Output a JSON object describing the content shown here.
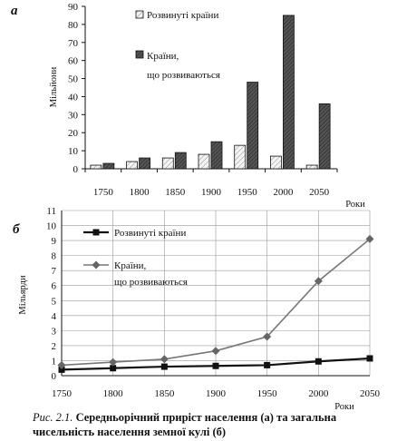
{
  "chart_data": [
    {
      "type": "bar",
      "panel_label": "а",
      "categories": [
        "1750",
        "1800",
        "1850",
        "1900",
        "1950",
        "2000",
        "2050"
      ],
      "series": [
        {
          "name": "Розвинуті країни",
          "values": [
            2,
            4,
            6,
            8,
            13,
            7,
            2
          ]
        },
        {
          "name": "Країни, що розвиваються",
          "values": [
            3,
            6,
            9,
            15,
            48,
            85,
            36
          ]
        }
      ],
      "xlabel": "Роки",
      "ylabel": "Мільйони",
      "ylim": [
        0,
        90
      ],
      "yticks": [
        "0",
        "10",
        "20",
        "30",
        "40",
        "50",
        "60",
        "70",
        "80",
        "90"
      ],
      "grid": false,
      "legend": "top-left"
    },
    {
      "type": "line",
      "panel_label": "б",
      "x": [
        "1750",
        "1800",
        "1850",
        "1900",
        "1950",
        "2000",
        "2050"
      ],
      "series": [
        {
          "name": "Розвинуті країни",
          "values": [
            0.4,
            0.5,
            0.6,
            0.65,
            0.7,
            0.95,
            1.15
          ]
        },
        {
          "name": "Країни, що розвиваються",
          "values": [
            0.7,
            0.9,
            1.1,
            1.65,
            2.6,
            6.3,
            9.1
          ]
        }
      ],
      "xlabel": "Роки",
      "ylabel": "Мільярди",
      "ylim": [
        0,
        11
      ],
      "yticks": [
        "0",
        "1",
        "2",
        "3",
        "4",
        "5",
        "6",
        "7",
        "8",
        "9",
        "10",
        "11"
      ],
      "grid": true,
      "legend": "top-left"
    }
  ],
  "caption": {
    "prefix": "Рис. 2.1.",
    "text": "Середньорічний приріст населення (а) та загальна чисельність населення земної кулі (б)"
  }
}
